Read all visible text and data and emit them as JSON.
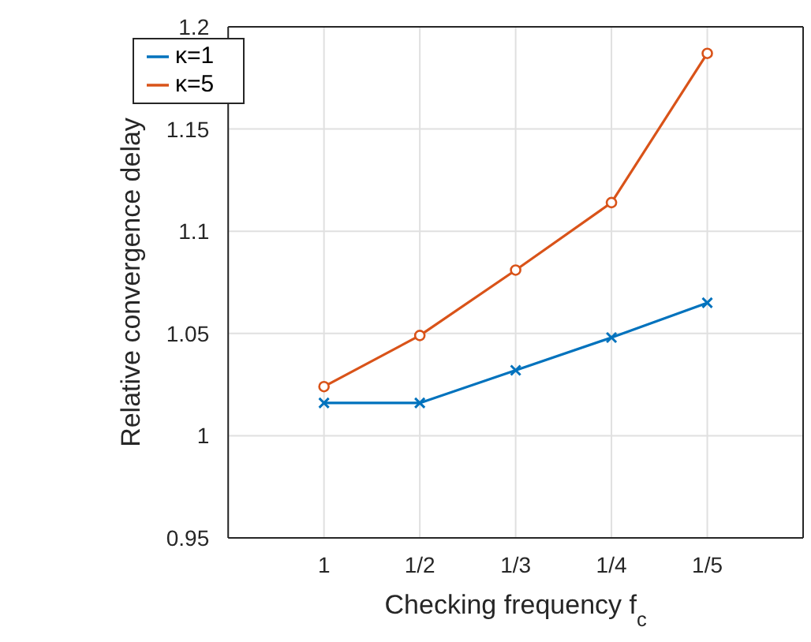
{
  "chart_data": {
    "type": "line",
    "xlabel": "Checking frequency f$_{c}$",
    "ylabel": "Relative convergence delay",
    "categories": [
      "1",
      "1/2",
      "1/3",
      "1/4",
      "1/5"
    ],
    "series": [
      {
        "name": "κ=1",
        "color": "#0072bd",
        "marker": "cross",
        "values": [
          1.016,
          1.016,
          1.032,
          1.048,
          1.065
        ]
      },
      {
        "name": "κ=5",
        "color": "#d95319",
        "marker": "circle",
        "values": [
          1.024,
          1.049,
          1.081,
          1.114,
          1.187
        ]
      }
    ],
    "ylim": [
      0.95,
      1.2
    ],
    "yticks": [
      0.95,
      1,
      1.05,
      1.1,
      1.15,
      1.2
    ],
    "grid": true,
    "legend": "top left",
    "line_style": "solid"
  }
}
